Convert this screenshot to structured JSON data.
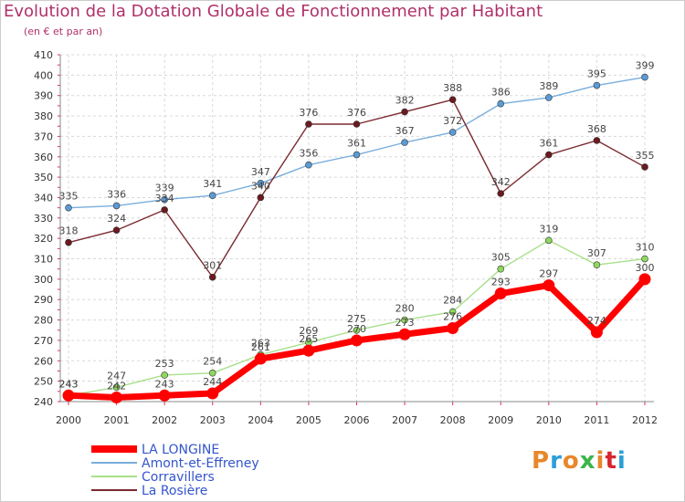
{
  "header": {
    "title": "Evolution de la Dotation Globale de Fonctionnement par Habitant",
    "subtitle": "(en € et par an)"
  },
  "logo": {
    "text": "Proxiti",
    "colors": [
      "#e8872a",
      "#2a9fd8",
      "#e8872a",
      "#3cb54a",
      "#e8872a",
      "#d8262e",
      "#2a9fd8"
    ]
  },
  "chart_data": {
    "type": "line",
    "title": "Evolution de la Dotation Globale de Fonctionnement par Habitant",
    "subtitle": "(en € et par an)",
    "xlabel": "",
    "ylabel": "",
    "x": [
      "2000",
      "2001",
      "2002",
      "2003",
      "2004",
      "2005",
      "2006",
      "2007",
      "2008",
      "2009",
      "2010",
      "2011",
      "2012"
    ],
    "ylim": [
      240,
      410
    ],
    "yticks": [
      240,
      250,
      260,
      270,
      280,
      290,
      300,
      310,
      320,
      330,
      340,
      350,
      360,
      370,
      380,
      390,
      400,
      410
    ],
    "grid": true,
    "legend_position": "bottom-left",
    "series": [
      {
        "name": "Amont-et-Effreney",
        "color": "#5b9bd5",
        "line": "#7aaedc",
        "values": [
          335,
          336,
          339,
          341,
          347,
          356,
          361,
          367,
          372,
          386,
          389,
          395,
          399
        ]
      },
      {
        "name": "La Rosière",
        "color": "#6b1a1f",
        "line": "#7a2a30",
        "values": [
          318,
          324,
          334,
          301,
          340,
          376,
          376,
          382,
          388,
          342,
          361,
          368,
          355
        ]
      },
      {
        "name": "Corravillers",
        "color": "#8fd860",
        "line": "#a8e08a",
        "values": [
          243,
          247,
          253,
          254,
          263,
          269,
          275,
          280,
          284,
          305,
          319,
          307,
          310
        ]
      },
      {
        "name": "LA LONGINE",
        "color": "#ff0000",
        "line": "#ff0000",
        "values": [
          243,
          242,
          243,
          244,
          261,
          265,
          270,
          273,
          276,
          293,
          297,
          274,
          300
        ]
      }
    ]
  }
}
